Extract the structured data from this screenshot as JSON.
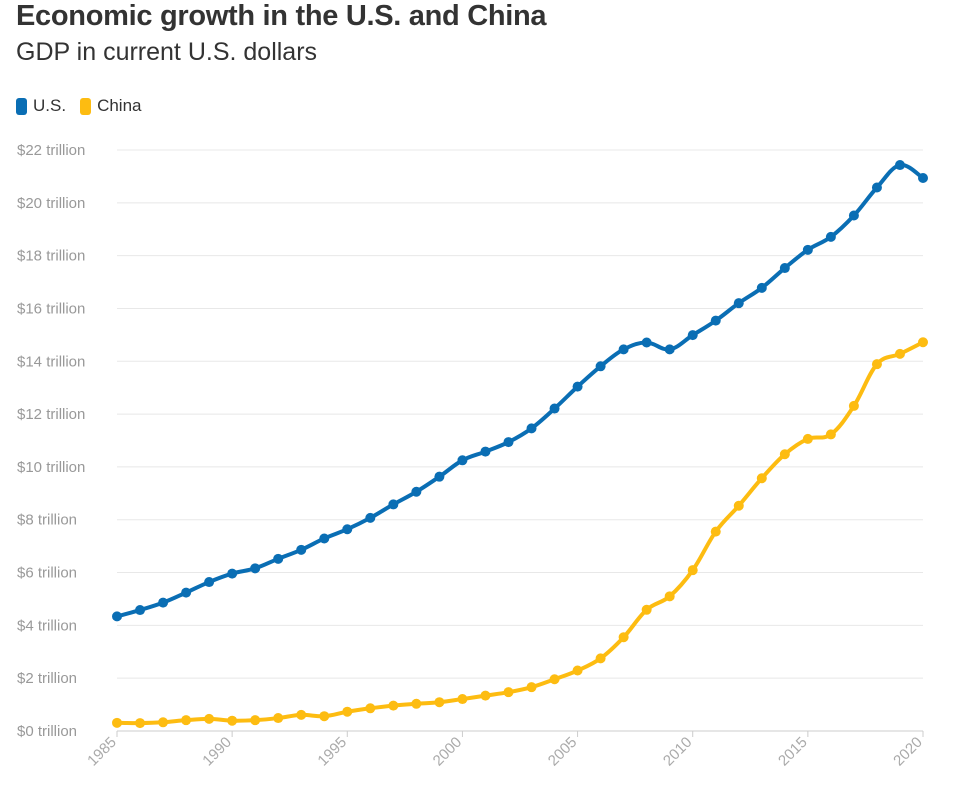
{
  "chart_data": {
    "type": "line",
    "title": "Economic growth in the U.S. and China",
    "subtitle": "GDP in current U.S. dollars",
    "xlabel": "",
    "ylabel": "",
    "ylim": [
      0,
      22
    ],
    "xlim": [
      1985,
      2020
    ],
    "y_ticks": [
      {
        "value": 0,
        "label": "$0 trillion"
      },
      {
        "value": 2,
        "label": "$2 trillion"
      },
      {
        "value": 4,
        "label": "$4 trillion"
      },
      {
        "value": 6,
        "label": "$6 trillion"
      },
      {
        "value": 8,
        "label": "$8 trillion"
      },
      {
        "value": 10,
        "label": "$10 trillion"
      },
      {
        "value": 12,
        "label": "$12 trillion"
      },
      {
        "value": 14,
        "label": "$14 trillion"
      },
      {
        "value": 16,
        "label": "$16 trillion"
      },
      {
        "value": 18,
        "label": "$18 trillion"
      },
      {
        "value": 20,
        "label": "$20 trillion"
      },
      {
        "value": 22,
        "label": "$22 trillion"
      }
    ],
    "x_ticks": [
      {
        "value": 1985,
        "label": "1985"
      },
      {
        "value": 1990,
        "label": "1990"
      },
      {
        "value": 1995,
        "label": "1995"
      },
      {
        "value": 2000,
        "label": "2000"
      },
      {
        "value": 2005,
        "label": "2005"
      },
      {
        "value": 2010,
        "label": "2010"
      },
      {
        "value": 2015,
        "label": "2015"
      },
      {
        "value": 2020,
        "label": "2020"
      }
    ],
    "grid": true,
    "legend_position": "top-left",
    "x": [
      1985,
      1986,
      1987,
      1988,
      1989,
      1990,
      1991,
      1992,
      1993,
      1994,
      1995,
      1996,
      1997,
      1998,
      1999,
      2000,
      2001,
      2002,
      2003,
      2004,
      2005,
      2006,
      2007,
      2008,
      2009,
      2010,
      2011,
      2012,
      2013,
      2014,
      2015,
      2016,
      2017,
      2018,
      2019,
      2020
    ],
    "series": [
      {
        "name": "U.S.",
        "color": "#0a6eb4",
        "values": [
          4.34,
          4.58,
          4.86,
          5.24,
          5.64,
          5.96,
          6.16,
          6.52,
          6.86,
          7.29,
          7.64,
          8.07,
          8.58,
          9.06,
          9.63,
          10.25,
          10.58,
          10.94,
          11.46,
          12.21,
          13.04,
          13.81,
          14.45,
          14.71,
          14.45,
          14.99,
          15.54,
          16.2,
          16.78,
          17.53,
          18.22,
          18.71,
          19.52,
          20.58,
          21.43,
          20.94
        ]
      },
      {
        "name": "China",
        "color": "#fdbc11",
        "values": [
          0.31,
          0.3,
          0.33,
          0.41,
          0.46,
          0.39,
          0.41,
          0.49,
          0.61,
          0.56,
          0.73,
          0.86,
          0.96,
          1.03,
          1.09,
          1.21,
          1.34,
          1.47,
          1.66,
          1.96,
          2.29,
          2.75,
          3.55,
          4.59,
          5.1,
          6.09,
          7.55,
          8.53,
          9.57,
          10.48,
          11.06,
          11.23,
          12.31,
          13.89,
          14.28,
          14.72
        ]
      }
    ]
  }
}
